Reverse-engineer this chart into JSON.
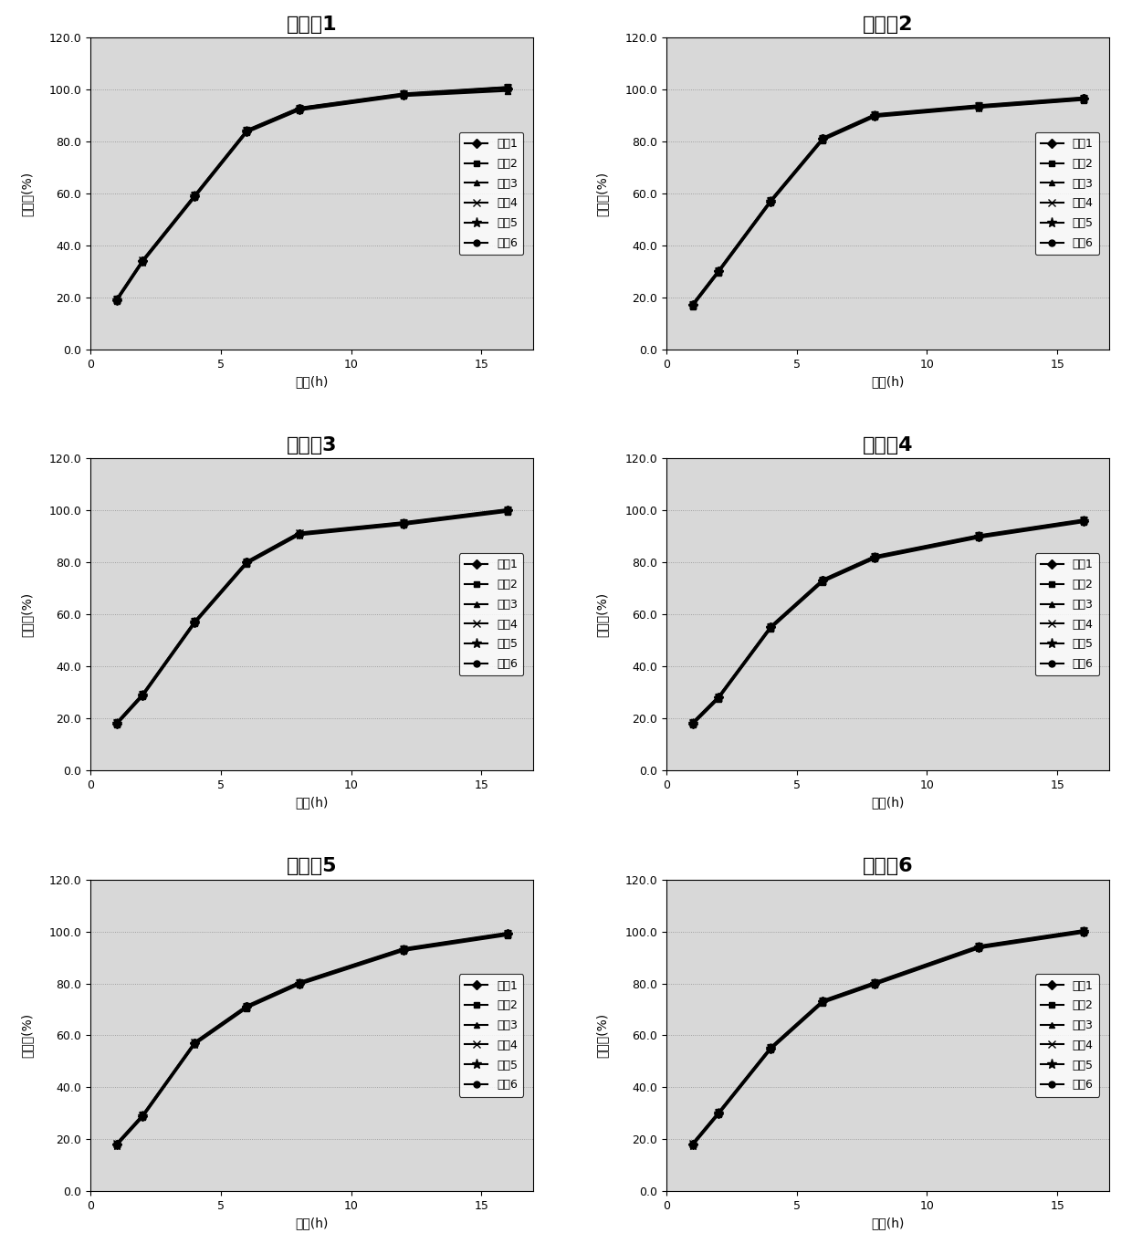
{
  "panels": [
    {
      "title": "实施例1",
      "x": [
        1,
        2,
        4,
        6,
        8,
        12,
        16
      ],
      "series": [
        [
          19.0,
          34.0,
          59.0,
          84.0,
          92.5,
          98.0,
          100.5
        ],
        [
          19.5,
          34.5,
          59.5,
          84.5,
          93.0,
          98.5,
          101.0
        ],
        [
          18.5,
          33.5,
          58.5,
          83.5,
          92.0,
          97.5,
          99.5
        ],
        [
          19.2,
          34.2,
          59.2,
          84.2,
          92.8,
          98.2,
          100.8
        ],
        [
          18.8,
          33.8,
          58.8,
          83.8,
          92.2,
          97.8,
          99.8
        ],
        [
          19.3,
          34.3,
          59.3,
          84.3,
          92.9,
          98.3,
          100.9
        ]
      ]
    },
    {
      "title": "实施例2",
      "x": [
        1,
        2,
        4,
        6,
        8,
        12,
        16
      ],
      "series": [
        [
          17.0,
          30.0,
          57.0,
          81.0,
          90.0,
          93.5,
          96.5
        ],
        [
          17.5,
          30.5,
          57.5,
          81.5,
          90.5,
          94.0,
          97.0
        ],
        [
          16.5,
          29.5,
          56.5,
          80.5,
          89.5,
          93.0,
          96.0
        ],
        [
          17.2,
          30.2,
          57.2,
          81.2,
          90.2,
          93.7,
          96.7
        ],
        [
          16.8,
          29.8,
          56.8,
          80.8,
          89.8,
          93.2,
          96.2
        ],
        [
          17.3,
          30.3,
          57.3,
          81.3,
          90.3,
          93.8,
          96.8
        ]
      ]
    },
    {
      "title": "实施例3",
      "x": [
        1,
        2,
        4,
        6,
        8,
        12,
        16
      ],
      "series": [
        [
          18.0,
          29.0,
          57.0,
          80.0,
          91.0,
          95.0,
          100.0
        ],
        [
          18.5,
          29.5,
          57.5,
          80.5,
          91.5,
          95.5,
          100.5
        ],
        [
          17.5,
          28.5,
          56.5,
          79.5,
          90.5,
          94.5,
          99.5
        ],
        [
          18.2,
          29.2,
          57.2,
          80.2,
          91.2,
          95.2,
          100.2
        ],
        [
          17.8,
          28.8,
          56.8,
          79.8,
          90.8,
          94.8,
          99.8
        ],
        [
          18.3,
          29.3,
          57.3,
          80.3,
          91.3,
          95.3,
          100.3
        ]
      ]
    },
    {
      "title": "实施例4",
      "x": [
        1,
        2,
        4,
        6,
        8,
        12,
        16
      ],
      "series": [
        [
          18.0,
          28.0,
          55.0,
          73.0,
          82.0,
          90.0,
          96.0
        ],
        [
          18.5,
          28.5,
          55.5,
          73.5,
          82.5,
          90.5,
          96.5
        ],
        [
          17.5,
          27.5,
          54.5,
          72.5,
          81.5,
          89.5,
          95.5
        ],
        [
          18.2,
          28.2,
          55.2,
          73.2,
          82.2,
          90.2,
          96.2
        ],
        [
          17.8,
          27.8,
          54.8,
          72.8,
          81.8,
          89.8,
          95.8
        ],
        [
          18.3,
          28.3,
          55.3,
          73.3,
          82.3,
          90.3,
          96.3
        ]
      ]
    },
    {
      "title": "实施例5",
      "x": [
        1,
        2,
        4,
        6,
        8,
        12,
        16
      ],
      "series": [
        [
          18.0,
          29.0,
          57.0,
          71.0,
          80.0,
          93.0,
          99.0
        ],
        [
          18.5,
          29.5,
          57.5,
          71.5,
          80.5,
          93.5,
          99.5
        ],
        [
          17.5,
          28.5,
          56.5,
          70.5,
          79.5,
          92.5,
          98.5
        ],
        [
          18.2,
          29.2,
          57.2,
          71.2,
          80.2,
          93.2,
          99.2
        ],
        [
          17.8,
          28.8,
          56.8,
          70.8,
          79.8,
          92.8,
          98.8
        ],
        [
          18.3,
          29.3,
          57.3,
          71.3,
          80.3,
          93.3,
          99.3
        ]
      ]
    },
    {
      "title": "实施例6",
      "x": [
        1,
        2,
        4,
        6,
        8,
        12,
        16
      ],
      "series": [
        [
          18.0,
          30.0,
          55.0,
          73.0,
          80.0,
          94.0,
          100.0
        ],
        [
          18.5,
          30.5,
          55.5,
          73.5,
          80.5,
          94.5,
          100.5
        ],
        [
          17.5,
          29.5,
          54.5,
          72.5,
          79.5,
          93.5,
          99.5
        ],
        [
          18.2,
          30.2,
          55.2,
          73.2,
          80.2,
          94.2,
          100.2
        ],
        [
          17.8,
          29.8,
          54.8,
          72.8,
          79.8,
          93.8,
          99.8
        ],
        [
          18.3,
          30.3,
          55.3,
          73.3,
          80.3,
          94.3,
          100.3
        ]
      ]
    }
  ],
  "legend_labels": [
    "样哆1",
    "样哆2",
    "样哆3",
    "样哆4",
    "样哆5",
    "样哆6"
  ],
  "markers": [
    "D",
    "s",
    "^",
    "x",
    "*",
    "o"
  ],
  "marker_sizes": [
    5,
    5,
    5,
    6,
    8,
    5
  ],
  "xlabel": "时间(h)",
  "ylabel": "释放度(%)",
  "ylim": [
    0.0,
    120.0
  ],
  "yticks": [
    0.0,
    20.0,
    40.0,
    60.0,
    80.0,
    100.0,
    120.0
  ],
  "xticks": [
    0,
    5,
    10,
    15
  ],
  "xlim": [
    0,
    17
  ]
}
